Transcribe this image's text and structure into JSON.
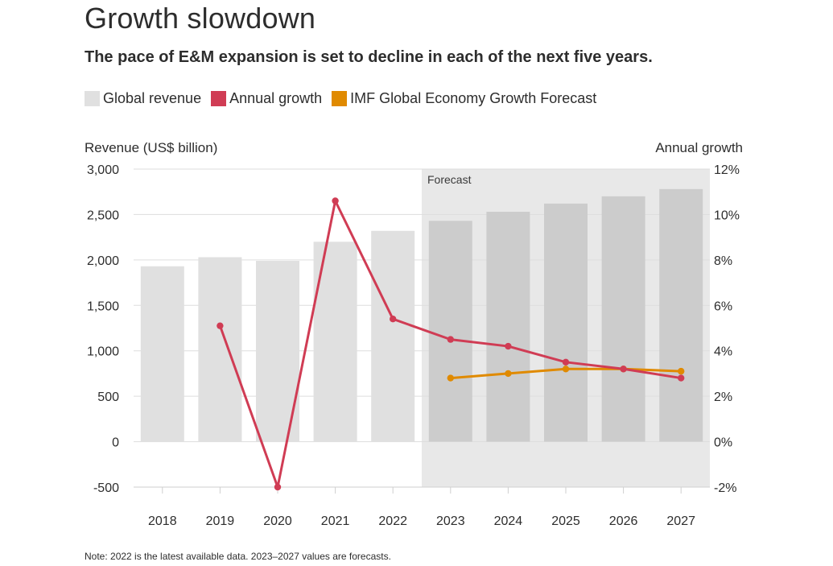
{
  "title": "Growth slowdown",
  "subtitle": "The pace of E&M expansion is set to decline in each of the next five years.",
  "note": "Note: 2022 is the latest available data. 2023–2027 values are forecasts.",
  "colors": {
    "revenue": "#e0e0e0",
    "revenue_forecast": "#cccccc",
    "forecast_band": "#e8e8e8",
    "growth": "#d03c54",
    "imf": "#e08a00",
    "grid": "#dddddd"
  },
  "legend": [
    {
      "label": "Global revenue",
      "color": "#e0e0e0"
    },
    {
      "label": "Annual growth",
      "color": "#d03c54"
    },
    {
      "label": "IMF Global Economy Growth Forecast",
      "color": "#e08a00"
    }
  ],
  "chart_data": {
    "type": "bar",
    "categories": [
      "2018",
      "2019",
      "2020",
      "2021",
      "2022",
      "2023",
      "2024",
      "2025",
      "2026",
      "2027"
    ],
    "y_left_label": "Revenue (US$ billion)",
    "y_right_label": "Annual growth",
    "y_left_ticks": [
      "3,000",
      "2,500",
      "2,000",
      "1,500",
      "1,000",
      "500",
      "0",
      "-500"
    ],
    "y_right_ticks": [
      "12%",
      "10%",
      "8%",
      "6%",
      "4%",
      "2%",
      "0%",
      "-2%"
    ],
    "ylim_left": [
      -500,
      3000
    ],
    "ylim_right": [
      -2,
      12
    ],
    "forecast_label": "Forecast",
    "forecast_start": "2023",
    "series": [
      {
        "name": "Global revenue",
        "type": "bar",
        "axis": "left",
        "values": [
          1930,
          2030,
          1990,
          2200,
          2320,
          2430,
          2530,
          2620,
          2700,
          2780
        ]
      },
      {
        "name": "Annual growth",
        "type": "line",
        "axis": "right",
        "values": [
          null,
          5.1,
          -2.0,
          10.6,
          5.4,
          4.5,
          4.2,
          3.5,
          3.2,
          2.8
        ]
      },
      {
        "name": "IMF Global Economy Growth Forecast",
        "type": "line",
        "axis": "right",
        "values": [
          null,
          null,
          null,
          null,
          null,
          2.8,
          3.0,
          3.2,
          3.2,
          3.1
        ]
      }
    ],
    "grid": true,
    "legend_position": "top-left"
  }
}
